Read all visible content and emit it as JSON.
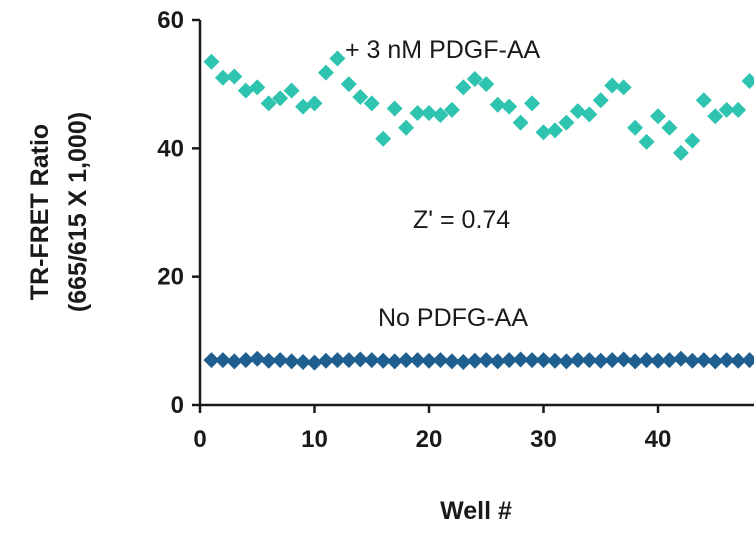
{
  "chart_data": {
    "type": "scatter",
    "xlabel": "Well #",
    "ylabel_line1": "TR-FRET Ratio",
    "ylabel_line2": "(665/615 X 1,000)",
    "xlim": [
      0,
      48
    ],
    "ylim": [
      0,
      60
    ],
    "x_ticks": [
      0,
      10,
      20,
      30,
      40
    ],
    "y_ticks": [
      0,
      20,
      40,
      60
    ],
    "annotations": {
      "plus": "+ 3 nM PDGF-AA",
      "zprime": "Z' = 0.74",
      "minus": "No PDFG-AA"
    },
    "colors": {
      "plus": "#2ec4b0",
      "minus": "#1f5f8f",
      "axis": "#1a1a1a"
    },
    "series": [
      {
        "name": "+ 3 nM PDGF-AA",
        "x": [
          1,
          2,
          3,
          4,
          5,
          6,
          7,
          8,
          9,
          10,
          11,
          12,
          13,
          14,
          15,
          16,
          17,
          18,
          19,
          20,
          21,
          22,
          23,
          24,
          25,
          26,
          27,
          28,
          29,
          30,
          31,
          32,
          33,
          34,
          35,
          36,
          37,
          38,
          39,
          40,
          41,
          42,
          43,
          44,
          45,
          46,
          47,
          48
        ],
        "y": [
          53.5,
          51,
          51.2,
          49,
          49.5,
          47,
          47.8,
          49,
          46.5,
          47,
          51.8,
          54,
          50,
          48,
          47,
          41.5,
          46.2,
          43.2,
          45.5,
          45.5,
          45.2,
          46,
          49.5,
          50.8,
          50,
          46.8,
          46.5,
          44,
          47,
          42.5,
          42.8,
          44,
          45.8,
          45.3,
          47.5,
          49.8,
          49.5,
          43.2,
          41,
          45,
          43.2,
          39.3,
          41.2,
          47.5,
          45,
          46,
          46,
          50.5
        ]
      },
      {
        "name": "No PDFG-AA",
        "x": [
          1,
          2,
          3,
          4,
          5,
          6,
          7,
          8,
          9,
          10,
          11,
          12,
          13,
          14,
          15,
          16,
          17,
          18,
          19,
          20,
          21,
          22,
          23,
          24,
          25,
          26,
          27,
          28,
          29,
          30,
          31,
          32,
          33,
          34,
          35,
          36,
          37,
          38,
          39,
          40,
          41,
          42,
          43,
          44,
          45,
          46,
          47,
          48
        ],
        "y": [
          7,
          7,
          6.8,
          7,
          7.2,
          6.9,
          7,
          6.8,
          6.7,
          6.6,
          6.9,
          7,
          7,
          7.1,
          7,
          6.9,
          6.8,
          7,
          7,
          6.9,
          7,
          6.8,
          6.7,
          6.9,
          7,
          6.8,
          7,
          7.1,
          7,
          7,
          6.9,
          6.8,
          7,
          7,
          6.9,
          7,
          7.1,
          6.8,
          7,
          6.9,
          7,
          7.2,
          6.9,
          7,
          6.8,
          7,
          6.9,
          7
        ]
      }
    ]
  }
}
